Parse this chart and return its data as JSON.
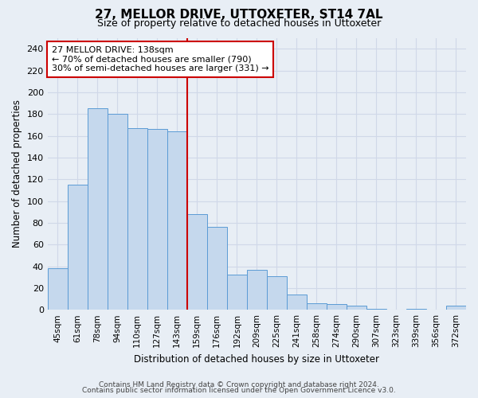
{
  "title": "27, MELLOR DRIVE, UTTOXETER, ST14 7AL",
  "subtitle": "Size of property relative to detached houses in Uttoxeter",
  "xlabel": "Distribution of detached houses by size in Uttoxeter",
  "ylabel": "Number of detached properties",
  "bin_labels": [
    "45sqm",
    "61sqm",
    "78sqm",
    "94sqm",
    "110sqm",
    "127sqm",
    "143sqm",
    "159sqm",
    "176sqm",
    "192sqm",
    "209sqm",
    "225sqm",
    "241sqm",
    "258sqm",
    "274sqm",
    "290sqm",
    "307sqm",
    "323sqm",
    "339sqm",
    "356sqm",
    "372sqm"
  ],
  "bar_values": [
    38,
    115,
    185,
    180,
    167,
    166,
    164,
    88,
    76,
    32,
    37,
    31,
    14,
    6,
    5,
    4,
    1,
    0,
    1,
    0,
    4
  ],
  "bar_color": "#c5d8ed",
  "bar_edge_color": "#5b9bd5",
  "vline_color": "#cc0000",
  "vline_index": 6,
  "annotation_title": "27 MELLOR DRIVE: 138sqm",
  "annotation_line1": "← 70% of detached houses are smaller (790)",
  "annotation_line2": "30% of semi-detached houses are larger (331) →",
  "annotation_box_color": "#ffffff",
  "annotation_box_edge_color": "#cc0000",
  "ylim": [
    0,
    250
  ],
  "yticks": [
    0,
    20,
    40,
    60,
    80,
    100,
    120,
    140,
    160,
    180,
    200,
    220,
    240
  ],
  "grid_color": "#d0d8e8",
  "background_color": "#e8eef5",
  "footer1": "Contains HM Land Registry data © Crown copyright and database right 2024.",
  "footer2": "Contains public sector information licensed under the Open Government Licence v3.0."
}
